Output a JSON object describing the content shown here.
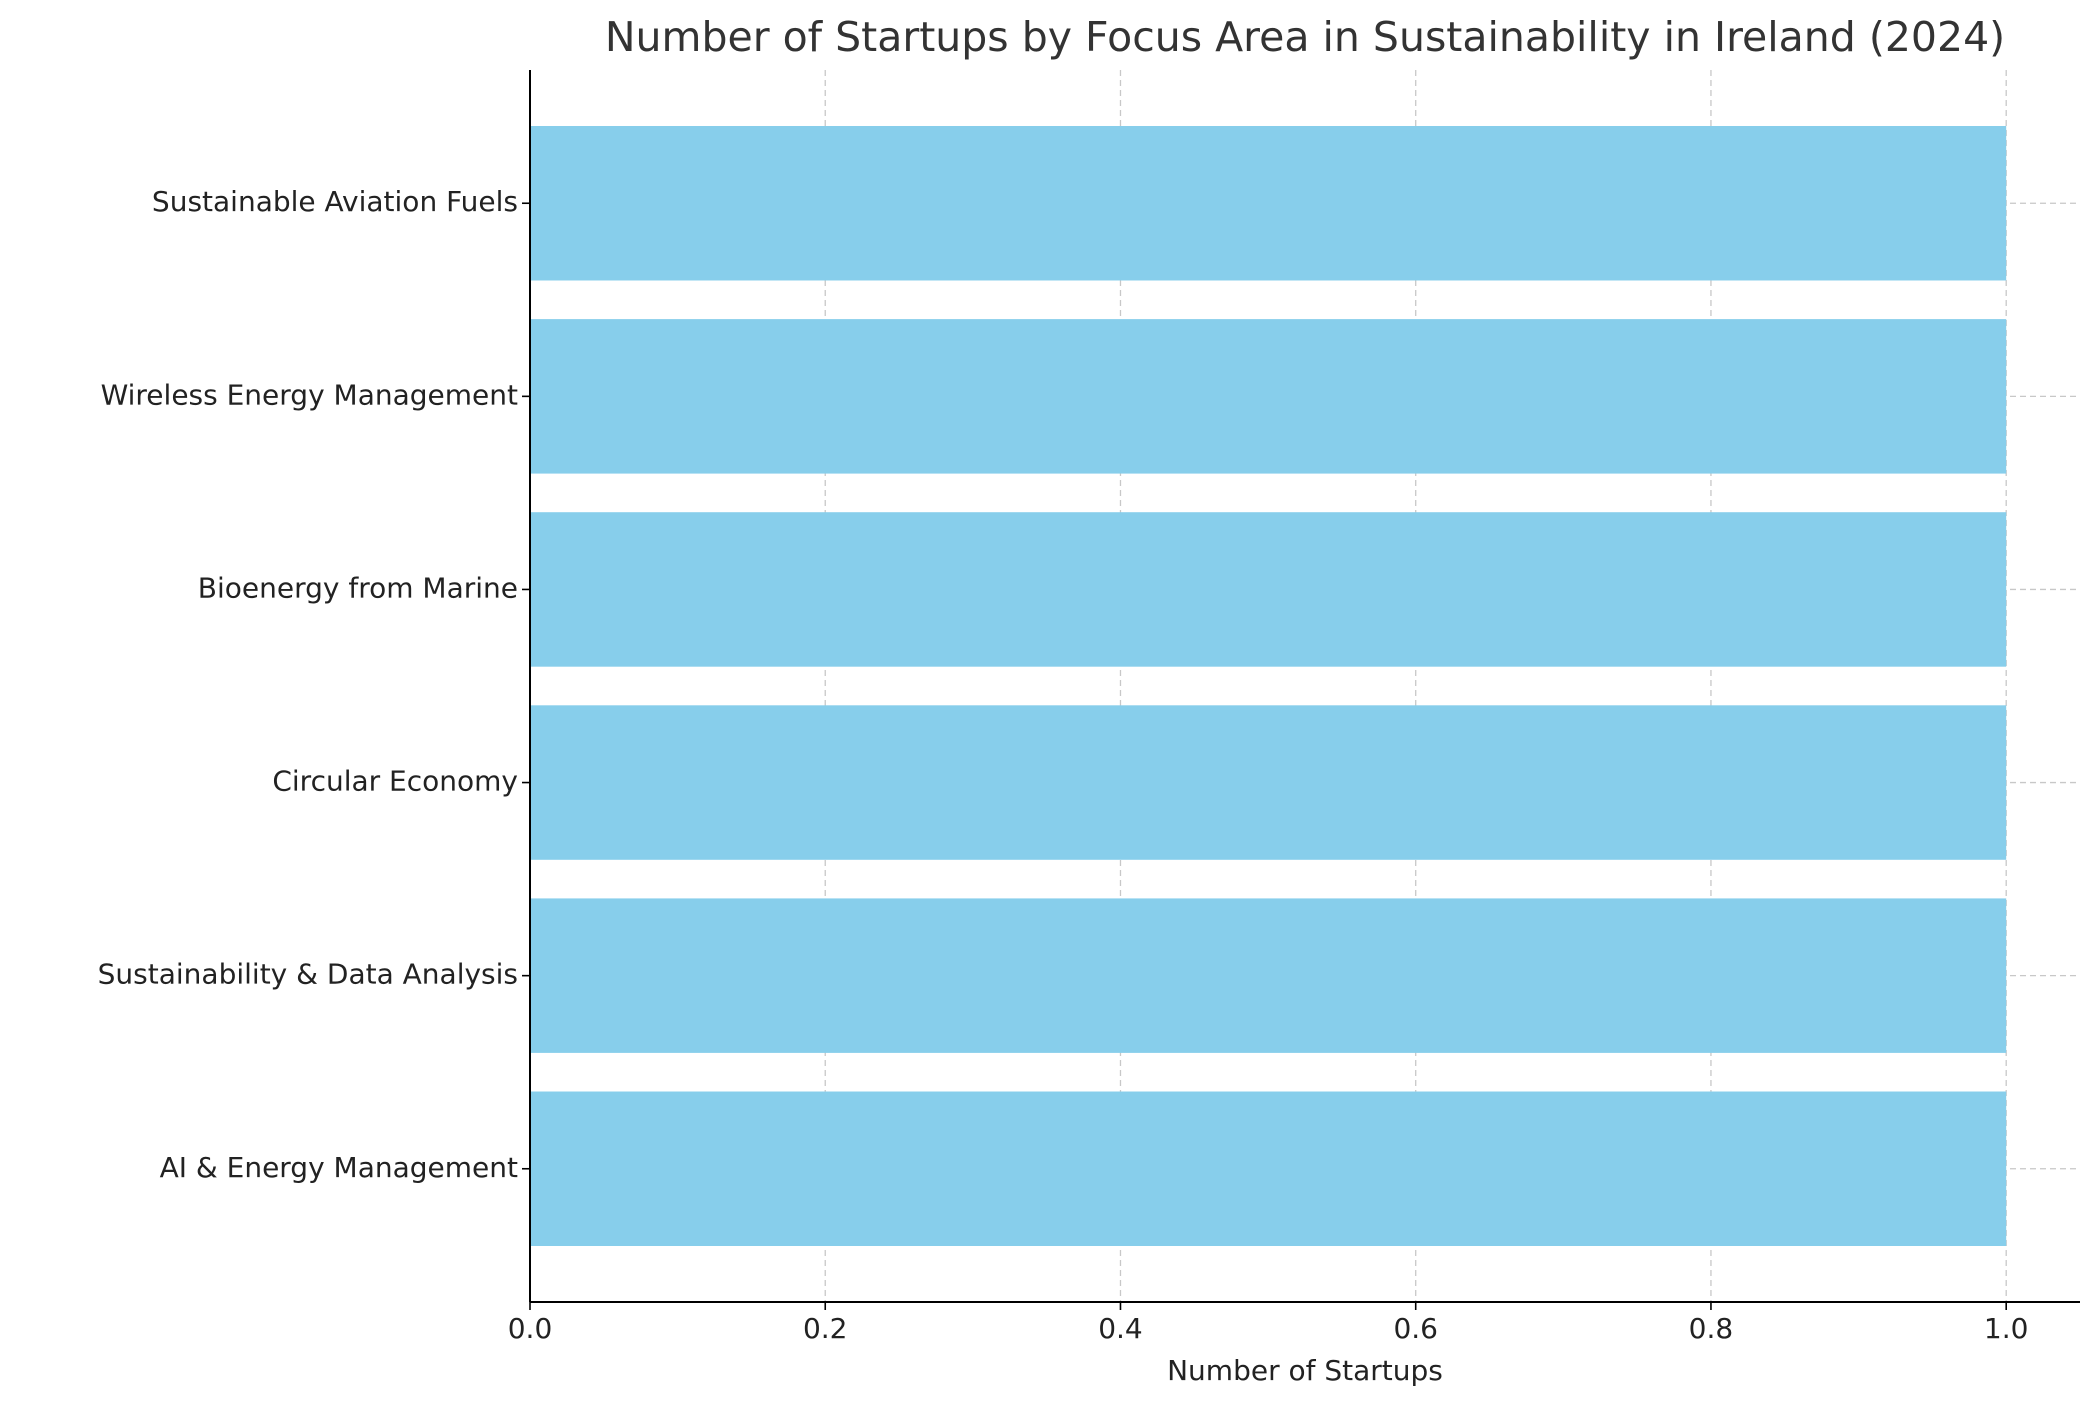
{
  "chart_data": {
    "type": "barh",
    "title": "Number of Startups by Focus Area in Sustainability in Ireland (2024)",
    "xlabel": "Number of Startups",
    "categories": [
      "AI & Energy Management",
      "Sustainability & Data Analysis",
      "Circular Economy",
      "Bioenergy from Marine",
      "Wireless Energy Management",
      "Sustainable Aviation Fuels"
    ],
    "values": [
      1,
      1,
      1,
      1,
      1,
      1
    ],
    "color": "#87ceeb",
    "xlim": [
      0,
      1.05
    ],
    "xticks": [
      {
        "value": 0,
        "label": "0.0"
      },
      0.2,
      0.4,
      0.6,
      0.8,
      {
        "value": 1,
        "label": "1.0"
      }
    ],
    "grid": true
  }
}
